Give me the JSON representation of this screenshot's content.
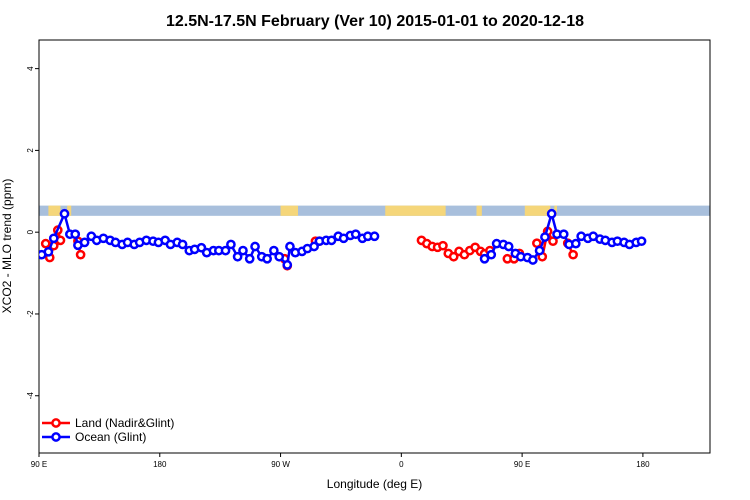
{
  "chart_data": {
    "type": "line",
    "title": "12.5N-17.5N February (Ver 10)   2015-01-01 to 2020-12-18",
    "xlabel": "Longitude (deg E)",
    "ylabel": "XCO2 - MLO trend (ppm)",
    "xlim": [
      90,
      590
    ],
    "ylim": [
      -5.4,
      4.7
    ],
    "x_ticks": [
      {
        "value": 90,
        "label": "90 E"
      },
      {
        "value": 180,
        "label": "180"
      },
      {
        "value": 270,
        "label": "90 W"
      },
      {
        "value": 360,
        "label": "0"
      },
      {
        "value": 450,
        "label": "90 E"
      },
      {
        "value": 540,
        "label": "180"
      }
    ],
    "y_ticks": [
      -4,
      -2,
      0,
      2,
      4
    ],
    "grid": false,
    "legend_position": "bottom-left",
    "background_band": {
      "y_range": [
        0.4,
        0.65
      ],
      "ocean_color": "#a8bfdc",
      "land_color": "#f5d67a",
      "land_segments": [
        [
          97,
          106
        ],
        [
          111,
          114
        ],
        [
          270,
          283
        ],
        [
          348,
          393
        ],
        [
          416,
          420
        ],
        [
          452,
          471
        ],
        [
          474,
          476
        ]
      ]
    },
    "series": [
      {
        "name": "Land (Nadir&Glint)",
        "color": "#ff0000",
        "segments": [
          [
            [
              95,
              -0.28
            ],
            [
              98,
              -0.62
            ],
            [
              101,
              -0.33
            ],
            [
              104,
              0.05
            ],
            [
              106,
              -0.2
            ]
          ],
          [
            [
              119,
              -0.22
            ],
            [
              121,
              -0.55
            ]
          ],
          [
            [
              273,
              -0.65
            ],
            [
              275,
              -0.82
            ]
          ],
          [
            [
              296,
              -0.22
            ],
            [
              299,
              -0.22
            ]
          ],
          [
            [
              375,
              -0.2
            ],
            [
              379,
              -0.28
            ],
            [
              383,
              -0.35
            ],
            [
              387,
              -0.37
            ],
            [
              391,
              -0.33
            ],
            [
              395,
              -0.52
            ],
            [
              399,
              -0.6
            ],
            [
              403,
              -0.47
            ],
            [
              407,
              -0.55
            ],
            [
              411,
              -0.45
            ],
            [
              415,
              -0.37
            ],
            [
              419,
              -0.47
            ],
            [
              422,
              -0.53
            ],
            [
              426,
              -0.45
            ]
          ],
          [
            [
              439,
              -0.65
            ],
            [
              444,
              -0.65
            ],
            [
              448,
              -0.52
            ]
          ],
          [
            [
              461,
              -0.27
            ],
            [
              465,
              -0.6
            ],
            [
              469,
              0.02
            ],
            [
              473,
              -0.22
            ]
          ],
          [
            [
              484,
              -0.27
            ],
            [
              488,
              -0.55
            ]
          ]
        ]
      },
      {
        "name": "Ocean (Glint)",
        "color": "#0000ff",
        "segments": [
          [
            [
              92,
              -0.55
            ],
            [
              97,
              -0.48
            ],
            [
              101,
              -0.15
            ],
            [
              109,
              0.45
            ],
            [
              113,
              -0.05
            ],
            [
              117,
              -0.05
            ],
            [
              119,
              -0.32
            ],
            [
              124,
              -0.25
            ],
            [
              129,
              -0.1
            ],
            [
              133,
              -0.2
            ],
            [
              138,
              -0.15
            ],
            [
              143,
              -0.2
            ],
            [
              147,
              -0.25
            ],
            [
              152,
              -0.3
            ],
            [
              156,
              -0.25
            ],
            [
              161,
              -0.3
            ],
            [
              165,
              -0.25
            ],
            [
              170,
              -0.2
            ],
            [
              175,
              -0.22
            ],
            [
              179,
              -0.25
            ],
            [
              184,
              -0.2
            ],
            [
              188,
              -0.3
            ],
            [
              193,
              -0.25
            ],
            [
              197,
              -0.3
            ],
            [
              202,
              -0.45
            ],
            [
              206,
              -0.42
            ],
            [
              211,
              -0.38
            ],
            [
              215,
              -0.5
            ],
            [
              220,
              -0.45
            ],
            [
              224,
              -0.45
            ],
            [
              229,
              -0.45
            ],
            [
              233,
              -0.3
            ],
            [
              238,
              -0.6
            ],
            [
              242,
              -0.45
            ],
            [
              247,
              -0.65
            ],
            [
              251,
              -0.35
            ],
            [
              256,
              -0.6
            ],
            [
              260,
              -0.65
            ],
            [
              265,
              -0.45
            ],
            [
              269,
              -0.6
            ],
            [
              275,
              -0.8
            ],
            [
              277,
              -0.35
            ],
            [
              281,
              -0.5
            ],
            [
              286,
              -0.47
            ],
            [
              290,
              -0.4
            ],
            [
              295,
              -0.35
            ],
            [
              299,
              -0.22
            ],
            [
              304,
              -0.2
            ],
            [
              308,
              -0.2
            ],
            [
              313,
              -0.1
            ],
            [
              317,
              -0.15
            ],
            [
              322,
              -0.08
            ],
            [
              326,
              -0.05
            ],
            [
              331,
              -0.15
            ],
            [
              335,
              -0.1
            ],
            [
              340,
              -0.1
            ]
          ],
          [
            [
              422,
              -0.65
            ],
            [
              427,
              -0.55
            ],
            [
              431,
              -0.28
            ],
            [
              436,
              -0.3
            ],
            [
              440,
              -0.35
            ],
            [
              445,
              -0.52
            ],
            [
              449,
              -0.6
            ],
            [
              454,
              -0.62
            ],
            [
              458,
              -0.68
            ],
            [
              463,
              -0.45
            ],
            [
              467,
              -0.12
            ],
            [
              472,
              0.45
            ],
            [
              476,
              -0.05
            ],
            [
              481,
              -0.05
            ],
            [
              485,
              -0.3
            ],
            [
              490,
              -0.28
            ],
            [
              494,
              -0.1
            ],
            [
              499,
              -0.15
            ],
            [
              503,
              -0.1
            ],
            [
              508,
              -0.17
            ],
            [
              512,
              -0.2
            ],
            [
              517,
              -0.25
            ],
            [
              521,
              -0.22
            ],
            [
              526,
              -0.25
            ],
            [
              530,
              -0.3
            ],
            [
              535,
              -0.25
            ],
            [
              539,
              -0.22
            ]
          ]
        ]
      }
    ]
  }
}
